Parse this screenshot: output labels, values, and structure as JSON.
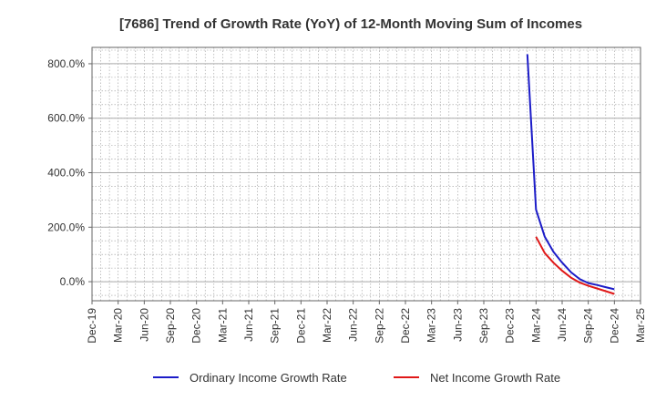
{
  "chart_data": {
    "type": "line",
    "title": "[7686]  Trend of Growth Rate (YoY) of 12-Month Moving Sum of Incomes",
    "xlabel": "",
    "ylabel": "",
    "x_ticks": [
      "Dec-19",
      "Mar-20",
      "Jun-20",
      "Sep-20",
      "Dec-20",
      "Mar-21",
      "Jun-21",
      "Sep-21",
      "Dec-21",
      "Mar-22",
      "Jun-22",
      "Sep-22",
      "Dec-22",
      "Mar-23",
      "Jun-23",
      "Sep-23",
      "Dec-23",
      "Mar-24",
      "Jun-24",
      "Sep-24",
      "Dec-24",
      "Mar-25"
    ],
    "y_ticks": [
      "0.0%",
      "200.0%",
      "400.0%",
      "600.0%",
      "800.0%"
    ],
    "y_tick_values": [
      0,
      200,
      400,
      600,
      800
    ],
    "ylim": [
      -70,
      860
    ],
    "x_range_months": [
      "2019-12",
      "2025-03"
    ],
    "grid": true,
    "legend_position": "bottom",
    "series": [
      {
        "name": "Ordinary Income Growth Rate",
        "color": "#1c1cc8",
        "points": [
          {
            "x": "2024-02",
            "y": 835
          },
          {
            "x": "2024-03",
            "y": 265
          },
          {
            "x": "2024-04",
            "y": 165
          },
          {
            "x": "2024-05",
            "y": 110
          },
          {
            "x": "2024-06",
            "y": 70
          },
          {
            "x": "2024-07",
            "y": 35
          },
          {
            "x": "2024-08",
            "y": 10
          },
          {
            "x": "2024-09",
            "y": -5
          },
          {
            "x": "2024-10",
            "y": -12
          },
          {
            "x": "2024-11",
            "y": -20
          },
          {
            "x": "2024-12",
            "y": -28
          }
        ]
      },
      {
        "name": "Net Income Growth Rate",
        "color": "#e01818",
        "points": [
          {
            "x": "2024-03",
            "y": 165
          },
          {
            "x": "2024-04",
            "y": 105
          },
          {
            "x": "2024-05",
            "y": 70
          },
          {
            "x": "2024-06",
            "y": 40
          },
          {
            "x": "2024-07",
            "y": 15
          },
          {
            "x": "2024-08",
            "y": -3
          },
          {
            "x": "2024-09",
            "y": -15
          },
          {
            "x": "2024-10",
            "y": -25
          },
          {
            "x": "2024-11",
            "y": -35
          },
          {
            "x": "2024-12",
            "y": -45
          }
        ]
      }
    ]
  }
}
